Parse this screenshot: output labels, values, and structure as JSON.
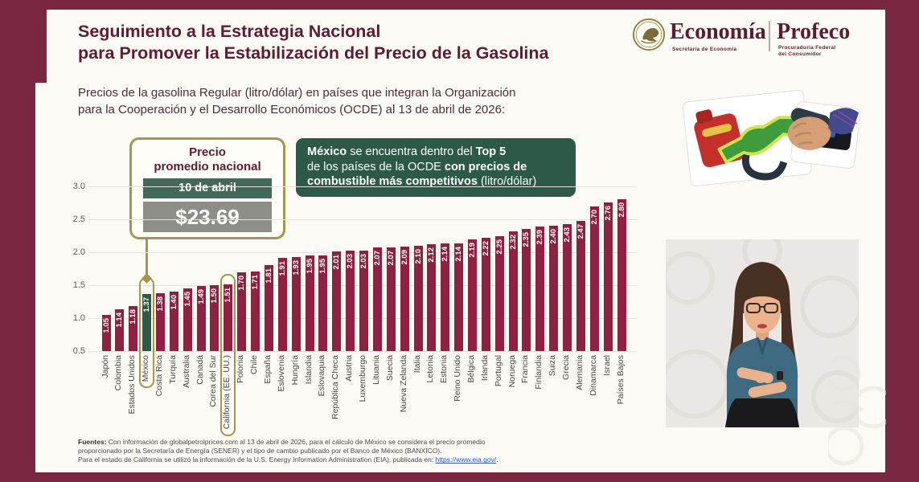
{
  "header": {
    "title_line1": "Seguimiento a la Estrategia Nacional",
    "title_line2": "para Promover la Estabilización del Precio de la Gasolina",
    "subtitle_line1": "Precios de la gasolina Regular (litro/dólar) en países que integran la Organización",
    "subtitle_line2": "para la Cooperación y el Desarrollo Económicos (OCDE) al 13 de abril de 2026:"
  },
  "logos": {
    "economia_name": "Economía",
    "economia_sub": "Secretaría de Economía",
    "profeco_name": "Profeco",
    "profeco_sub_line1": "Procuraduría Federal",
    "profeco_sub_line2": "del Consumidor"
  },
  "callout": {
    "title_line1": "Precio",
    "title_line2": "promedio nacional",
    "date_label": "10 de abril",
    "price": "$23.69"
  },
  "top5_box": {
    "lines": [
      [
        {
          "t": "México",
          "b": 1
        },
        {
          "t": " se encuentra dentro del ",
          "b": 0
        },
        {
          "t": "Top 5",
          "b": 1
        }
      ],
      [
        {
          "t": "de los países de la OCDE ",
          "b": 0
        },
        {
          "t": "con precios de",
          "b": 1
        }
      ],
      [
        {
          "t": "combustible más competitivos",
          "b": 1
        },
        {
          "t": " (litro/dólar)",
          "b": 0
        }
      ]
    ]
  },
  "chart_data": {
    "type": "bar",
    "title": "Precios de la gasolina Regular (litro/dólar) en países que integran la OCDE al 13 de abril de 2026",
    "categories": [
      "Japón",
      "Colombia",
      "Estados Unidos",
      "México",
      "Costa Rica",
      "Turquía",
      "Australia",
      "Canadá",
      "Corea del Sur",
      "California (EE. UU.)",
      "Polonia",
      "Chile",
      "España",
      "Eslovenia",
      "Hungría",
      "Islandia",
      "Eslovaquia",
      "República Checa",
      "Austria",
      "Luxemburgo",
      "Lituania",
      "Suecia",
      "Nueva Zelanda",
      "Italia",
      "Letonia",
      "Estonia",
      "Reino Unido",
      "Bélgica",
      "Irlanda",
      "Portugal",
      "Noruega",
      "Francia",
      "Finlandia",
      "Suiza",
      "Grecia",
      "Alemania",
      "Dinamarca",
      "Israel",
      "Países Bajos"
    ],
    "values": [
      1.05,
      1.14,
      1.18,
      1.37,
      1.38,
      1.4,
      1.45,
      1.49,
      1.5,
      1.51,
      1.7,
      1.71,
      1.81,
      1.91,
      1.93,
      1.95,
      1.95,
      2.01,
      2.03,
      2.03,
      2.07,
      2.07,
      2.09,
      2.1,
      2.12,
      2.14,
      2.14,
      2.19,
      2.22,
      2.25,
      2.32,
      2.35,
      2.39,
      2.4,
      2.43,
      2.47,
      2.7,
      2.76,
      2.8
    ],
    "ylim": [
      0.5,
      3.0
    ],
    "yticks": [
      0.5,
      1.0,
      1.5,
      2.0,
      2.5,
      3.0
    ],
    "grid": true,
    "value_labels": true,
    "bar_color": "#8f2040",
    "highlight_bar": "México",
    "highlight_color": "#2b5c49",
    "outlined_bars": [
      "México",
      "California (EE. UU.)"
    ],
    "outline_color": "#a6954d",
    "legend": "none"
  },
  "footer": {
    "label": "Fuentes:",
    "line1": " Con información de globalpetrolprices.com al 13 de abril de 2026, para el cálculo de México se considera el precio promedio",
    "line2": "proporcionado por la Secretaría de Energía (SENER) y el tipo de cambio publicado por el Banco de México (BANXICO).",
    "line3": "Para el estado de California se utilizó la información de la U.S. Energy Information Administration (EIA), publicada en: ",
    "link": "https://www.eia.gov/",
    "line3_end": "."
  },
  "images": {
    "seal_icon": "mexico-eagle-seal-icon",
    "pump_image": "gas-pump-nozzle-photo",
    "interpreter_image": "sign-language-interpreter"
  },
  "colors": {
    "frame": "#7a2742",
    "bar": "#8f2040",
    "mexico_green": "#2b5c49",
    "gold": "#a6954d",
    "title_maroon": "#611a33",
    "box_green": "#2d5a48",
    "price_gray": "#8e8e88"
  }
}
